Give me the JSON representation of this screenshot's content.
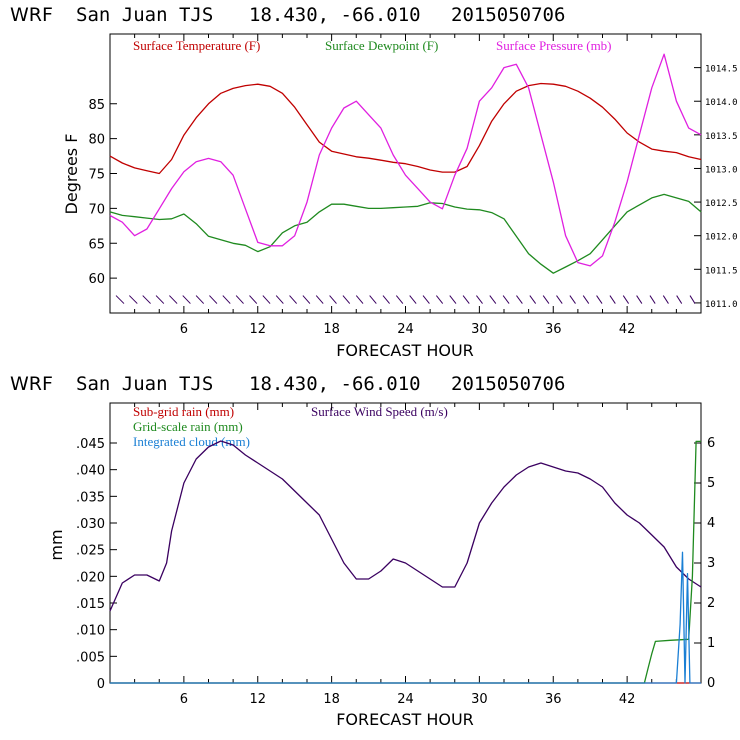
{
  "chart_data": [
    {
      "type": "line",
      "title_parts": [
        "WRF",
        "San Juan TJS",
        "18.430, -66.010",
        "2015050706"
      ],
      "xlabel": "FORECAST HOUR",
      "ylabel": "Degrees F",
      "xlim": [
        0,
        48
      ],
      "ylim": [
        55,
        95
      ],
      "ylim_right": [
        1010.85,
        1015.0
      ],
      "x_ticks": [
        "6",
        "12",
        "18",
        "24",
        "30",
        "36",
        "42"
      ],
      "y_ticks": [
        "60",
        "65",
        "70",
        "75",
        "80",
        "85"
      ],
      "y_ticks_right": [
        "1011.0",
        "1011.5",
        "1012.0",
        "1012.5",
        "1013.0",
        "1013.5",
        "1014.0",
        "1014.5"
      ],
      "grid": false,
      "legend_position": "top",
      "series": [
        {
          "name": "Surface Temperature (F)",
          "axis": "left",
          "color": "#c00000",
          "x": [
            0,
            1,
            2,
            3,
            4,
            5,
            6,
            7,
            8,
            9,
            10,
            11,
            12,
            13,
            14,
            15,
            16,
            17,
            18,
            19,
            20,
            21,
            22,
            23,
            24,
            25,
            26,
            27,
            28,
            29,
            30,
            31,
            32,
            33,
            34,
            35,
            36,
            37,
            38,
            39,
            40,
            41,
            42,
            43,
            44,
            45,
            46,
            47,
            48
          ],
          "values": [
            77.5,
            76.5,
            75.8,
            75.4,
            75.0,
            77.0,
            80.5,
            83.0,
            85.0,
            86.5,
            87.2,
            87.6,
            87.8,
            87.5,
            86.5,
            84.5,
            82.0,
            79.5,
            78.2,
            77.8,
            77.4,
            77.2,
            76.9,
            76.6,
            76.4,
            76.0,
            75.5,
            75.2,
            75.2,
            76.0,
            79.0,
            82.5,
            85.0,
            86.8,
            87.6,
            87.9,
            87.8,
            87.5,
            86.8,
            85.8,
            84.5,
            82.8,
            80.8,
            79.5,
            78.5,
            78.2,
            78.0,
            77.4,
            77.0
          ]
        },
        {
          "name": "Surface Dewpoint (F)",
          "axis": "left",
          "color": "#1f8a1f",
          "x": [
            0,
            1,
            2,
            3,
            4,
            5,
            6,
            7,
            8,
            9,
            10,
            11,
            12,
            13,
            14,
            15,
            16,
            17,
            18,
            19,
            20,
            21,
            22,
            23,
            24,
            25,
            26,
            27,
            28,
            29,
            30,
            31,
            32,
            33,
            34,
            35,
            36,
            37,
            38,
            39,
            40,
            41,
            42,
            43,
            44,
            45,
            46,
            47,
            48
          ],
          "values": [
            69.5,
            69.0,
            68.8,
            68.6,
            68.4,
            68.5,
            69.2,
            67.8,
            66.0,
            65.5,
            65.0,
            64.7,
            63.8,
            64.5,
            66.5,
            67.5,
            68.0,
            69.5,
            70.6,
            70.6,
            70.3,
            70.0,
            70.0,
            70.1,
            70.2,
            70.3,
            70.8,
            70.7,
            70.2,
            69.9,
            69.8,
            69.4,
            68.5,
            66.0,
            63.5,
            62.0,
            60.7,
            61.6,
            62.5,
            63.5,
            65.5,
            67.5,
            69.5,
            70.5,
            71.5,
            72.0,
            71.5,
            71.0,
            69.5
          ]
        },
        {
          "name": "Surface Pressure (mb)",
          "axis": "right",
          "color": "#e020e0",
          "x": [
            0,
            1,
            2,
            3,
            4,
            5,
            6,
            7,
            8,
            9,
            10,
            11,
            12,
            13,
            14,
            15,
            16,
            17,
            18,
            19,
            20,
            21,
            22,
            23,
            24,
            25,
            26,
            27,
            28,
            29,
            30,
            31,
            32,
            33,
            34,
            35,
            36,
            37,
            38,
            39,
            40,
            41,
            42,
            43,
            44,
            45,
            46,
            47,
            48
          ],
          "values": [
            1012.3,
            1012.2,
            1012.0,
            1012.1,
            1012.4,
            1012.7,
            1012.95,
            1013.1,
            1013.15,
            1013.1,
            1012.9,
            1012.4,
            1011.9,
            1011.85,
            1011.85,
            1012.0,
            1012.5,
            1013.2,
            1013.6,
            1013.9,
            1014.0,
            1013.8,
            1013.6,
            1013.2,
            1012.9,
            1012.7,
            1012.5,
            1012.4,
            1012.9,
            1013.3,
            1014.0,
            1014.2,
            1014.5,
            1014.55,
            1014.2,
            1013.5,
            1012.8,
            1012.0,
            1011.6,
            1011.55,
            1011.7,
            1012.2,
            1012.8,
            1013.5,
            1014.2,
            1014.7,
            1014.0,
            1013.6,
            1013.5
          ]
        }
      ],
      "wind_barbs": {
        "color": "#3a0060",
        "count": 44,
        "level_value": 1011.05
      }
    },
    {
      "type": "line",
      "title_parts": [
        "WRF",
        "San Juan TJS",
        "18.430, -66.010",
        "2015050706"
      ],
      "xlabel": "FORECAST HOUR",
      "ylabel": "mm",
      "xlim": [
        0,
        48
      ],
      "ylim": [
        0,
        0.0525
      ],
      "ylim_right": [
        0,
        7
      ],
      "x_ticks": [
        "6",
        "12",
        "18",
        "24",
        "30",
        "36",
        "42"
      ],
      "y_ticks": [
        "0",
        ".005",
        ".010",
        ".015",
        ".020",
        ".025",
        ".030",
        ".035",
        ".040",
        ".045"
      ],
      "y_ticks_right": [
        "0",
        "1",
        "2",
        "3",
        "4",
        "5",
        "6"
      ],
      "grid": false,
      "legend_position": "top-left",
      "series": [
        {
          "name": "Sub-grid rain (mm)",
          "axis": "left",
          "color": "#c00000",
          "x": [
            0,
            48
          ],
          "values": [
            0,
            0
          ]
        },
        {
          "name": "Surface Wind Speed (m/s)",
          "axis": "right",
          "color": "#3a0060",
          "x": [
            0,
            1,
            2,
            3,
            4,
            4.6,
            5,
            6,
            7,
            8,
            9,
            10,
            11,
            12,
            13,
            14,
            15,
            16,
            17,
            18,
            19,
            20,
            21,
            22,
            23,
            24,
            25,
            26,
            27,
            28,
            29,
            30,
            31,
            32,
            33,
            34,
            35,
            36,
            37,
            38,
            39,
            40,
            41,
            42,
            43,
            44,
            45,
            46,
            47,
            48
          ],
          "values": [
            1.8,
            2.5,
            2.7,
            2.7,
            2.55,
            3.0,
            3.8,
            5.0,
            5.6,
            5.9,
            6.05,
            5.95,
            5.7,
            5.5,
            5.3,
            5.1,
            4.8,
            4.5,
            4.2,
            3.6,
            3.0,
            2.6,
            2.6,
            2.8,
            3.1,
            3.0,
            2.8,
            2.6,
            2.4,
            2.4,
            3.0,
            4.0,
            4.5,
            4.9,
            5.2,
            5.4,
            5.5,
            5.4,
            5.3,
            5.25,
            5.1,
            4.9,
            4.5,
            4.2,
            4.0,
            3.7,
            3.4,
            2.9,
            2.6,
            2.4
          ]
        },
        {
          "name": "Grid-scale rain (mm)",
          "axis": "left",
          "color": "#1f8a1f",
          "x": [
            0,
            43.4,
            43.7,
            44.0,
            44.3,
            45.5,
            47.0,
            47.3,
            47.6,
            48
          ],
          "values": [
            0,
            0,
            0.0028,
            0.0055,
            0.0078,
            0.008,
            0.0082,
            0.02,
            0.0453,
            0.0453
          ]
        },
        {
          "name": "Integrated cloud (mm)",
          "axis": "left",
          "color": "#1a7fd4",
          "x": [
            0,
            46.0,
            46.3,
            46.5,
            46.7,
            46.9,
            47.1,
            47.3,
            48
          ],
          "values": [
            0,
            0,
            0.011,
            0.0245,
            0,
            0.0205,
            0,
            0,
            0
          ]
        }
      ]
    }
  ]
}
